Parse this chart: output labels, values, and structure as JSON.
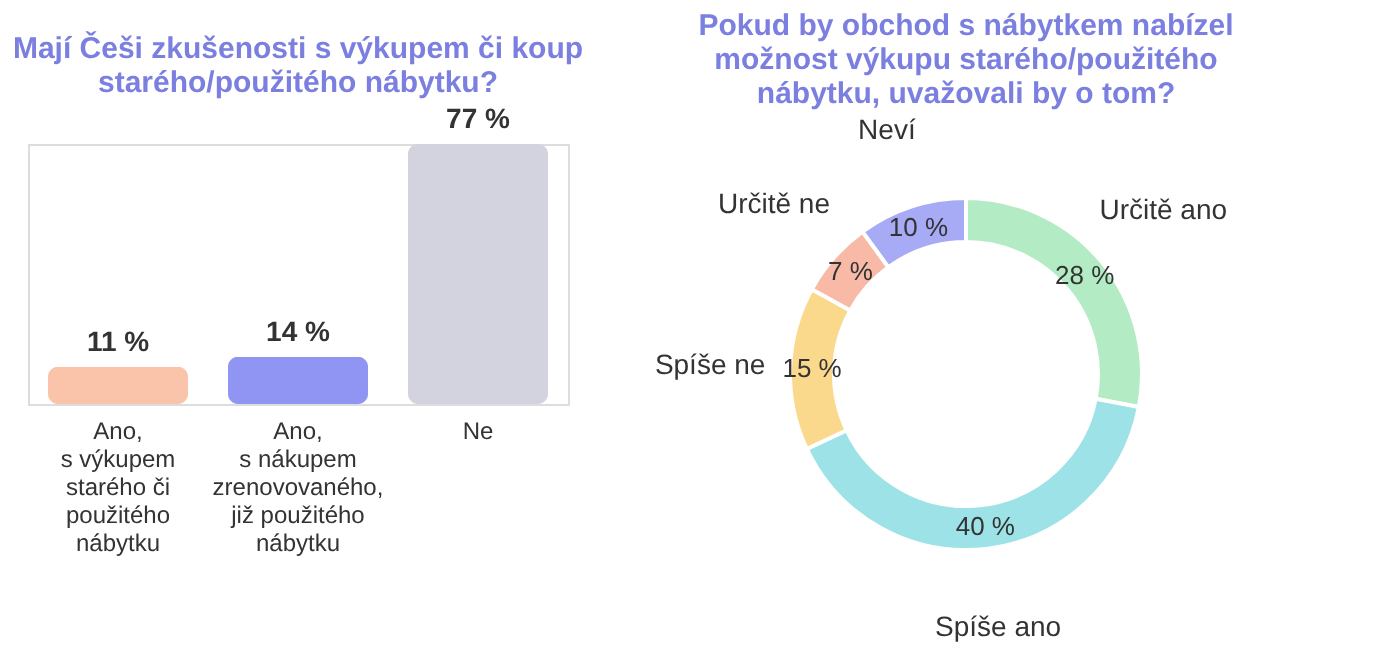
{
  "chart_data": [
    {
      "type": "bar",
      "title": "Mají Češi zkušenosti s výkupem či koup\nstarého/použitého nábytku?",
      "categories": [
        "Ano,\ns výkupem\nstarého či\npoužitého\nnábytku",
        "Ano,\ns nákupem\nzrenovovaného,\njiž použitého\nnábytku",
        "Ne"
      ],
      "values": [
        11,
        14,
        77
      ],
      "colors": [
        "#f9c4a9",
        "#9094f2",
        "#d3d3df"
      ],
      "value_labels": [
        "11 %",
        "14 %",
        "77 %"
      ]
    },
    {
      "type": "donut",
      "title": "Pokud by obchod s nábytkem nabízel\nmožnost výkupu starého/použitého\nnábytku, uvažovali by o tom?",
      "categories": [
        "Určitě ano",
        "Spíše ano",
        "Spíše ne",
        "Určitě ne",
        "Neví"
      ],
      "values": [
        28,
        40,
        15,
        7,
        10
      ],
      "colors": [
        "#b3ebc4",
        "#9ce2e6",
        "#fbd98c",
        "#f8b9a6",
        "#a7aaf4"
      ],
      "value_labels": [
        "28 %",
        "40 %",
        "15 %",
        "7 %",
        "10 %"
      ]
    }
  ]
}
